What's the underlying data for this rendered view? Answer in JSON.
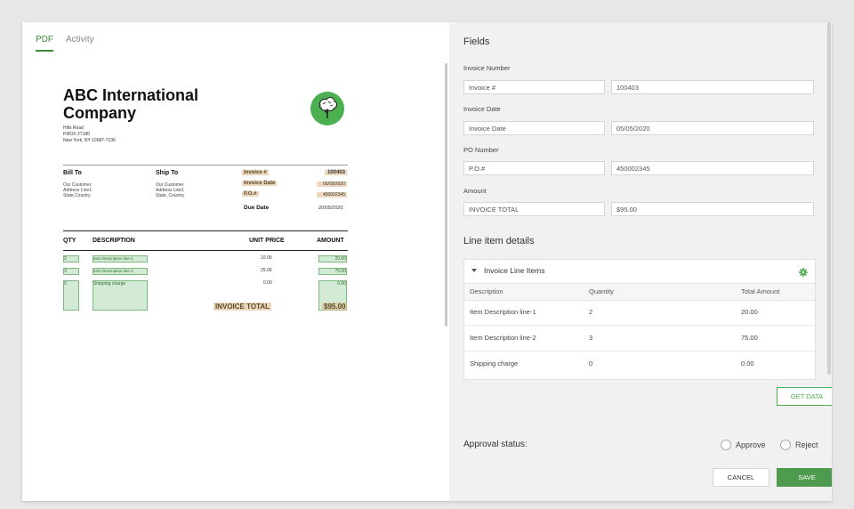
{
  "tabs": [
    {
      "label": "PDF"
    },
    {
      "label": "Activity"
    }
  ],
  "document": {
    "company": "ABC International Company",
    "address": [
      "Hills Road",
      "P.BOX 27180",
      "New York, NY 10087-7136"
    ],
    "bill_to": {
      "heading": "Bill To",
      "lines": [
        "Our Customer",
        "Address Line1",
        "State,Country"
      ]
    },
    "ship_to": {
      "heading": "Ship To",
      "lines": [
        "Our Customer",
        "Address Line1",
        "State, Country"
      ]
    },
    "meta": {
      "invoice_label": "Invoice #",
      "invoice_value": "100403",
      "date_label": "Invoice Date",
      "date_value": "05/05/2020",
      "po_label": "P.O.#",
      "po_value": "450002345",
      "due_label": "Due Date",
      "due_value": "20/05/2020"
    },
    "table_headers": {
      "qty": "QTY",
      "desc": "DESCRIPTION",
      "price": "UNIT PRICE",
      "amount": "AMOUNT"
    },
    "rows": [
      {
        "qty": "2",
        "desc": "Item Description line-1",
        "price": "10.00",
        "amount": "20.00"
      },
      {
        "qty": "3",
        "desc": "Item Description line-2",
        "price": "25.00",
        "amount": "75.00"
      },
      {
        "qty": "0",
        "desc": "Shipping charge",
        "price": "0.00",
        "amount": "0.00"
      }
    ],
    "total_label": "INVOICE TOTAL",
    "total_value": "$95.00"
  },
  "fields": {
    "title": "Fields",
    "items": [
      {
        "label": "Invoice Number",
        "key": "Invoice #",
        "value": "100403"
      },
      {
        "label": "Invoice Date",
        "key": "Invoice Date",
        "value": "05/05/2020"
      },
      {
        "label": "PO Number",
        "key": "P.O.#",
        "value": "450002345"
      },
      {
        "label": "Amount",
        "key": "INVOICE TOTAL",
        "value": "$95.00"
      }
    ]
  },
  "line_items": {
    "title": "Line item details",
    "card_title": "Invoice Line Items",
    "headers": [
      "Description",
      "Quantity",
      "Total Amount"
    ],
    "rows": [
      {
        "desc": "Item Description line-1",
        "qty": "2",
        "total": "20.00"
      },
      {
        "desc": "Item Description line-2",
        "qty": "3",
        "total": "75.00"
      },
      {
        "desc": "Shipping charge",
        "qty": "0",
        "total": "0.00"
      }
    ],
    "get_data_label": "GET DATA"
  },
  "approval": {
    "label": "Approval status:",
    "approve": "Approve",
    "reject": "Reject"
  },
  "actions": {
    "cancel": "CANCEL",
    "save": "SAVE"
  },
  "colors": {
    "accent": "#4caf50",
    "highlight": "#deb887"
  }
}
